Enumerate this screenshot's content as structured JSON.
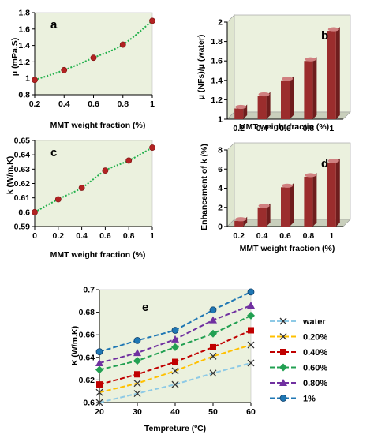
{
  "colors": {
    "plot_bg": "#ebf1de",
    "line": "#22b14c",
    "marker": "#b22222",
    "bar_front": "#9b2d2d",
    "bar_top": "#d08080",
    "bar_side": "#6e1d1d",
    "floor": "#c9cfbc"
  },
  "chart_data": [
    {
      "id": "a",
      "type": "line",
      "panel_label": "a",
      "xlabel": "MMT weight fraction (%)",
      "ylabel": "μ (mPa.S)",
      "x": [
        0.2,
        0.4,
        0.6,
        0.8,
        1
      ],
      "y": [
        0.98,
        1.1,
        1.25,
        1.41,
        1.7
      ],
      "xlim": [
        0.2,
        1
      ],
      "ylim": [
        0.8,
        1.8
      ],
      "xticks": [
        "0.2",
        "0.4",
        "0.6",
        "0.8",
        "1"
      ],
      "yticks": [
        "0.8",
        "1",
        "1.2",
        "1.4",
        "1.6",
        "1.8"
      ],
      "grid": false
    },
    {
      "id": "b",
      "type": "bar",
      "panel_label": "b",
      "xlabel": "MMT weight fractin (%)",
      "ylabel": "μ (NFs)/μ (water)",
      "categories": [
        "0.2",
        "0.4",
        "0.6",
        "0.8",
        "1"
      ],
      "values": [
        1.11,
        1.24,
        1.4,
        1.6,
        1.91
      ],
      "ylim": [
        1,
        2
      ],
      "yticks": [
        "1",
        "1.2",
        "1.4",
        "1.6",
        "1.8",
        "2"
      ],
      "grid": false
    },
    {
      "id": "c",
      "type": "line",
      "panel_label": "c",
      "xlabel": "MMT weight fraction (%)",
      "ylabel": "k (W/m.K)",
      "x": [
        0,
        0.2,
        0.4,
        0.6,
        0.8,
        1
      ],
      "y": [
        0.6,
        0.609,
        0.617,
        0.629,
        0.636,
        0.645
      ],
      "xlim": [
        0,
        1
      ],
      "ylim": [
        0.59,
        0.65
      ],
      "xticks": [
        "0",
        "0.2",
        "0.4",
        "0.6",
        "0.8",
        "1"
      ],
      "yticks": [
        "0.59",
        "0.6",
        "0.61",
        "0.62",
        "0.63",
        "0.64",
        "0.65"
      ],
      "grid": false
    },
    {
      "id": "d",
      "type": "bar",
      "panel_label": "d",
      "xlabel": "MMT weight fraction (%)",
      "ylabel": "Enhancement of k (%)",
      "categories": [
        "0.2",
        "0.4",
        "0.6",
        "0.8",
        "1"
      ],
      "values": [
        0.6,
        2.0,
        4.1,
        5.2,
        6.7
      ],
      "ylim": [
        0,
        8
      ],
      "yticks": [
        "0",
        "2",
        "4",
        "6",
        "8"
      ],
      "grid": false
    },
    {
      "id": "e",
      "type": "line",
      "panel_label": "e",
      "xlabel": "Tempreture (ºC)",
      "ylabel": "K (W/m.K)",
      "x": [
        20,
        30,
        40,
        50,
        60
      ],
      "xlim": [
        20,
        60
      ],
      "ylim": [
        0.6,
        0.7
      ],
      "xticks": [
        "20",
        "30",
        "40",
        "50",
        "60"
      ],
      "yticks": [
        "0.6",
        "0.62",
        "0.64",
        "0.66",
        "0.68",
        "0.7"
      ],
      "legend_position": "right",
      "grid": false,
      "series": [
        {
          "name": "water",
          "color": "#8ecae6",
          "marker": "x",
          "values": [
            0.6,
            0.608,
            0.616,
            0.626,
            0.635
          ]
        },
        {
          "name": "0.20%",
          "color": "#ffc000",
          "marker": "x",
          "values": [
            0.609,
            0.617,
            0.628,
            0.641,
            0.651
          ]
        },
        {
          "name": "0.40%",
          "color": "#c00000",
          "marker": "square",
          "values": [
            0.616,
            0.625,
            0.636,
            0.649,
            0.664
          ]
        },
        {
          "name": "0.60%",
          "color": "#22a052",
          "marker": "diamond",
          "values": [
            0.629,
            0.637,
            0.649,
            0.661,
            0.677
          ]
        },
        {
          "name": "0.80%",
          "color": "#7030a0",
          "marker": "triangle",
          "values": [
            0.635,
            0.644,
            0.656,
            0.673,
            0.686
          ]
        },
        {
          "name": "1%",
          "color": "#1f77b4",
          "marker": "circle",
          "values": [
            0.645,
            0.655,
            0.664,
            0.682,
            0.698
          ]
        }
      ]
    }
  ]
}
